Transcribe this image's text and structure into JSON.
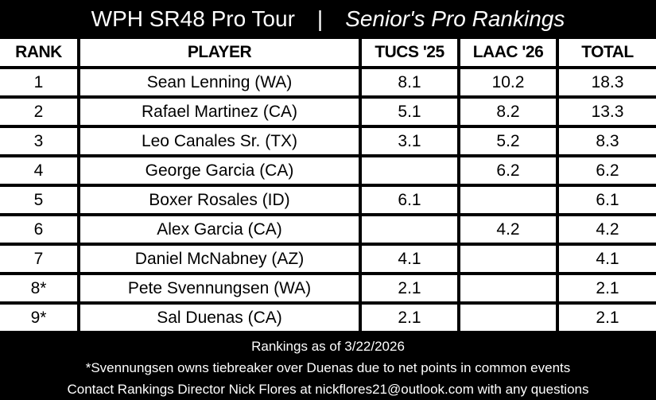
{
  "title": {
    "main": "WPH SR48 Pro Tour",
    "separator": "|",
    "subtitle": "Senior's Pro Rankings"
  },
  "table": {
    "headers": [
      "RANK",
      "PLAYER",
      "TUCS '25",
      "LAAC '26",
      "TOTAL"
    ],
    "rows": [
      [
        "1",
        "Sean Lenning (WA)",
        "8.1",
        "10.2",
        "18.3"
      ],
      [
        "2",
        "Rafael Martinez (CA)",
        "5.1",
        "8.2",
        "13.3"
      ],
      [
        "3",
        "Leo Canales Sr. (TX)",
        "3.1",
        "5.2",
        "8.3"
      ],
      [
        "4",
        "George Garcia (CA)",
        "",
        "6.2",
        "6.2"
      ],
      [
        "5",
        "Boxer Rosales (ID)",
        "6.1",
        "",
        "6.1"
      ],
      [
        "6",
        "Alex Garcia (CA)",
        "",
        "4.2",
        "4.2"
      ],
      [
        "7",
        "Daniel McNabney (AZ)",
        "4.1",
        "",
        "4.1"
      ],
      [
        "8*",
        "Pete Svennungsen (WA)",
        "2.1",
        "",
        "2.1"
      ],
      [
        "9*",
        "Sal Duenas (CA)",
        "2.1",
        "",
        "2.1"
      ]
    ]
  },
  "footer": {
    "as_of": "Rankings as of 3/22/2026",
    "tiebreaker_note": "*Svennungsen owns tiebreaker over Duenas due to net points in common events",
    "contact": "Contact Rankings Director Nick Flores at nickflores21@outlook.com with any questions"
  }
}
